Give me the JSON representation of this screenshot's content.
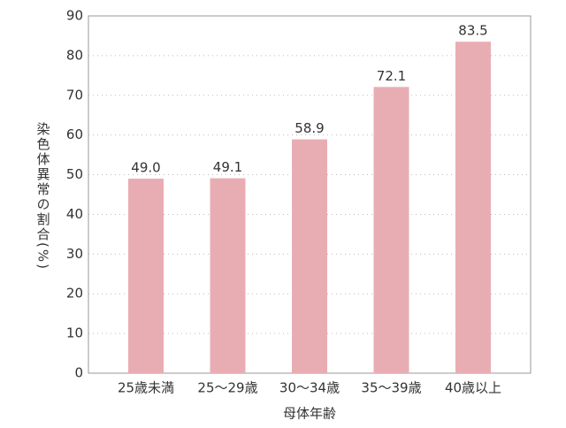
{
  "chart_data": {
    "type": "bar",
    "y_axis_label": "染色体異常の割合(%)",
    "x_axis_label": "母体年齢",
    "categories": [
      "25歳未満",
      "25〜29歳",
      "30〜34歳",
      "35〜39歳",
      "40歳以上"
    ],
    "values": [
      49.0,
      49.1,
      58.9,
      72.1,
      83.5
    ],
    "value_labels": [
      "49.0",
      "49.1",
      "58.9",
      "72.1",
      "83.5"
    ],
    "color": "#e8adb3",
    "ylim": [
      0,
      90
    ],
    "yticks": [
      0,
      10,
      20,
      30,
      40,
      50,
      60,
      70,
      80,
      90
    ],
    "grid": true
  }
}
